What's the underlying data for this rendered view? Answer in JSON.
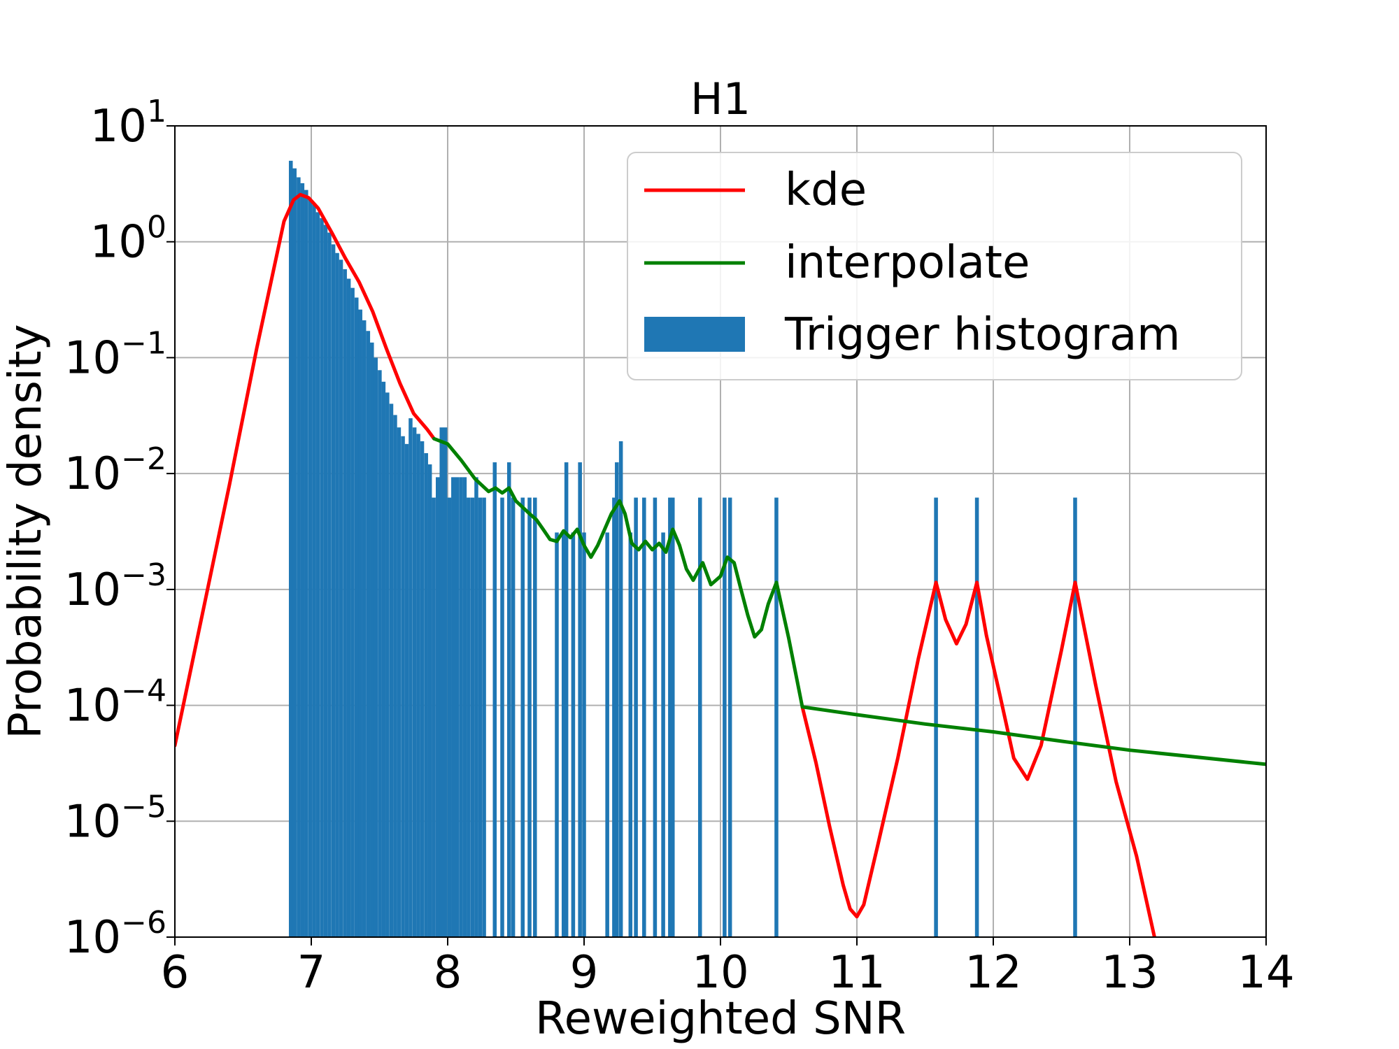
{
  "chart_data": {
    "type": "bar",
    "title": "H1",
    "xlabel": "Reweighted SNR",
    "ylabel": "Probability density",
    "xlim": [
      6,
      14
    ],
    "ylim": [
      1e-06,
      10
    ],
    "yscale": "log",
    "grid": true,
    "legend_position": "top-right",
    "x_ticks": [
      6,
      7,
      8,
      9,
      10,
      11,
      12,
      13,
      14
    ],
    "y_ticks": [
      {
        "value": 1e-06,
        "base": "10",
        "exp": "−6"
      },
      {
        "value": 1e-05,
        "base": "10",
        "exp": "−5"
      },
      {
        "value": 0.0001,
        "base": "10",
        "exp": "−4"
      },
      {
        "value": 0.001,
        "base": "10",
        "exp": "−3"
      },
      {
        "value": 0.01,
        "base": "10",
        "exp": "−2"
      },
      {
        "value": 0.1,
        "base": "10",
        "exp": "−1"
      },
      {
        "value": 1,
        "base": "10",
        "exp": "0"
      },
      {
        "value": 10,
        "base": "10",
        "exp": "1"
      }
    ],
    "colors": {
      "kde": "#ff0000",
      "interpolate": "#008000",
      "histogram": "#1f77b4",
      "grid": "#b0b0b0"
    },
    "legend": [
      {
        "label": "kde",
        "type": "line",
        "color": "#ff0000"
      },
      {
        "label": "interpolate",
        "type": "line",
        "color": "#008000"
      },
      {
        "label": "Trigger histogram",
        "type": "patch",
        "color": "#1f77b4"
      }
    ],
    "histogram": {
      "name": "Trigger histogram",
      "bin_width": 0.0284,
      "bins": [
        [
          6.85,
          5.0
        ],
        [
          6.878,
          4.3
        ],
        [
          6.907,
          3.6
        ],
        [
          6.935,
          3.2
        ],
        [
          6.963,
          2.8
        ],
        [
          6.992,
          2.3
        ],
        [
          7.02,
          2.1
        ],
        [
          7.048,
          1.8
        ],
        [
          7.077,
          1.6
        ],
        [
          7.105,
          1.4
        ],
        [
          7.133,
          1.2
        ],
        [
          7.162,
          0.95
        ],
        [
          7.19,
          0.8
        ],
        [
          7.218,
          0.7
        ],
        [
          7.247,
          0.58
        ],
        [
          7.275,
          0.48
        ],
        [
          7.303,
          0.4
        ],
        [
          7.332,
          0.33
        ],
        [
          7.36,
          0.26
        ],
        [
          7.388,
          0.21
        ],
        [
          7.417,
          0.17
        ],
        [
          7.445,
          0.135
        ],
        [
          7.473,
          0.1
        ],
        [
          7.502,
          0.078
        ],
        [
          7.53,
          0.062
        ],
        [
          7.558,
          0.05
        ],
        [
          7.587,
          0.04
        ],
        [
          7.615,
          0.032
        ],
        [
          7.643,
          0.025
        ],
        [
          7.672,
          0.021
        ],
        [
          7.7,
          0.018
        ],
        [
          7.728,
          0.03
        ],
        [
          7.757,
          0.025
        ],
        [
          7.785,
          0.022
        ],
        [
          7.813,
          0.019
        ],
        [
          7.842,
          0.015
        ],
        [
          7.87,
          0.012
        ],
        [
          7.898,
          0.0062
        ],
        [
          7.927,
          0.0093
        ],
        [
          7.955,
          0.025
        ],
        [
          7.983,
          0.025
        ],
        [
          8.012,
          0.0062
        ],
        [
          8.04,
          0.0093
        ],
        [
          8.068,
          0.0093
        ],
        [
          8.097,
          0.0093
        ],
        [
          8.125,
          0.0093
        ],
        [
          8.153,
          0.0062
        ],
        [
          8.182,
          0.0062
        ],
        [
          8.21,
          0.0093
        ],
        [
          8.238,
          0.0062
        ],
        [
          8.267,
          0.0062
        ],
        [
          8.345,
          0.0125
        ],
        [
          8.4,
          0.0062
        ],
        [
          8.45,
          0.0125
        ],
        [
          8.48,
          0.0062
        ],
        [
          8.55,
          0.0062
        ],
        [
          8.6,
          0.0062
        ],
        [
          8.64,
          0.0062
        ],
        [
          8.8,
          0.0031
        ],
        [
          8.85,
          0.0031
        ],
        [
          8.87,
          0.0125
        ],
        [
          8.92,
          0.0031
        ],
        [
          8.97,
          0.0125
        ],
        [
          9.0,
          0.0031
        ],
        [
          9.17,
          0.0031
        ],
        [
          9.22,
          0.0062
        ],
        [
          9.24,
          0.0125
        ],
        [
          9.27,
          0.019
        ],
        [
          9.34,
          0.0031
        ],
        [
          9.38,
          0.0062
        ],
        [
          9.44,
          0.0062
        ],
        [
          9.52,
          0.0062
        ],
        [
          9.58,
          0.0031
        ],
        [
          9.63,
          0.0062
        ],
        [
          9.65,
          0.0062
        ],
        [
          9.85,
          0.0062
        ],
        [
          10.03,
          0.0062
        ],
        [
          10.07,
          0.0062
        ],
        [
          10.41,
          0.0062
        ],
        [
          11.58,
          0.0062
        ],
        [
          11.88,
          0.0062
        ],
        [
          12.6,
          0.0062
        ]
      ]
    },
    "series": [
      {
        "name": "kde",
        "color": "#ff0000",
        "segments": [
          [
            [
              6.0,
              4.5e-05
            ],
            [
              6.2,
              0.0006
            ],
            [
              6.4,
              0.008
            ],
            [
              6.6,
              0.12
            ],
            [
              6.8,
              1.5
            ],
            [
              6.87,
              2.3
            ],
            [
              6.92,
              2.55
            ],
            [
              6.98,
              2.4
            ],
            [
              7.05,
              1.95
            ],
            [
              7.15,
              1.2
            ],
            [
              7.25,
              0.72
            ],
            [
              7.35,
              0.45
            ],
            [
              7.45,
              0.25
            ],
            [
              7.55,
              0.12
            ],
            [
              7.65,
              0.06
            ],
            [
              7.75,
              0.033
            ],
            [
              7.85,
              0.024
            ],
            [
              7.9,
              0.02
            ]
          ],
          [
            [
              10.6,
              9.7e-05
            ],
            [
              10.7,
              3.2e-05
            ],
            [
              10.8,
              9e-06
            ],
            [
              10.9,
              2.8e-06
            ],
            [
              10.95,
              1.75e-06
            ],
            [
              11.0,
              1.5e-06
            ],
            [
              11.05,
              1.9e-06
            ],
            [
              11.15,
              6e-06
            ],
            [
              11.3,
              3.5e-05
            ],
            [
              11.45,
              0.00025
            ],
            [
              11.58,
              0.00115
            ],
            [
              11.65,
              0.00055
            ],
            [
              11.73,
              0.00034
            ],
            [
              11.8,
              0.0005
            ],
            [
              11.88,
              0.00115
            ],
            [
              11.95,
              0.0004
            ],
            [
              12.05,
              0.00012
            ],
            [
              12.15,
              3.5e-05
            ],
            [
              12.25,
              2.3e-05
            ],
            [
              12.35,
              4.5e-05
            ],
            [
              12.5,
              0.0003
            ],
            [
              12.6,
              0.00115
            ],
            [
              12.75,
              0.00015
            ],
            [
              12.9,
              2.2e-05
            ],
            [
              13.05,
              5e-06
            ],
            [
              13.2,
              8e-07
            ]
          ]
        ]
      },
      {
        "name": "interpolate",
        "color": "#008000",
        "segments": [
          [
            [
              7.9,
              0.02
            ],
            [
              8.0,
              0.018
            ],
            [
              8.1,
              0.013
            ],
            [
              8.2,
              0.009
            ],
            [
              8.3,
              0.007
            ],
            [
              8.35,
              0.0075
            ],
            [
              8.4,
              0.0068
            ],
            [
              8.45,
              0.0075
            ],
            [
              8.5,
              0.0058
            ],
            [
              8.6,
              0.0045
            ],
            [
              8.65,
              0.004
            ],
            [
              8.7,
              0.0033
            ],
            [
              8.75,
              0.0027
            ],
            [
              8.8,
              0.0026
            ],
            [
              8.85,
              0.0032
            ],
            [
              8.9,
              0.0028
            ],
            [
              8.95,
              0.0033
            ],
            [
              9.0,
              0.0024
            ],
            [
              9.05,
              0.0019
            ],
            [
              9.1,
              0.0024
            ],
            [
              9.2,
              0.0045
            ],
            [
              9.26,
              0.0058
            ],
            [
              9.3,
              0.0045
            ],
            [
              9.35,
              0.0025
            ],
            [
              9.4,
              0.0022
            ],
            [
              9.45,
              0.0026
            ],
            [
              9.5,
              0.0022
            ],
            [
              9.55,
              0.0025
            ],
            [
              9.6,
              0.0021
            ],
            [
              9.65,
              0.0033
            ],
            [
              9.7,
              0.0024
            ],
            [
              9.75,
              0.0015
            ],
            [
              9.8,
              0.0012
            ],
            [
              9.87,
              0.0017
            ],
            [
              9.93,
              0.0011
            ],
            [
              10.0,
              0.0013
            ],
            [
              10.05,
              0.0019
            ],
            [
              10.1,
              0.0017
            ],
            [
              10.15,
              0.001
            ],
            [
              10.2,
              0.0006
            ],
            [
              10.25,
              0.00039
            ],
            [
              10.3,
              0.00045
            ],
            [
              10.35,
              0.00075
            ],
            [
              10.41,
              0.00115
            ],
            [
              10.45,
              0.0007
            ],
            [
              10.5,
              0.00038
            ],
            [
              10.6,
              9.7e-05
            ],
            [
              11.0,
              8.3e-05
            ],
            [
              11.5,
              6.9e-05
            ],
            [
              12.0,
              5.9e-05
            ],
            [
              12.5,
              4.9e-05
            ],
            [
              13.0,
              4.1e-05
            ],
            [
              14.0,
              3.1e-05
            ]
          ]
        ]
      }
    ]
  }
}
